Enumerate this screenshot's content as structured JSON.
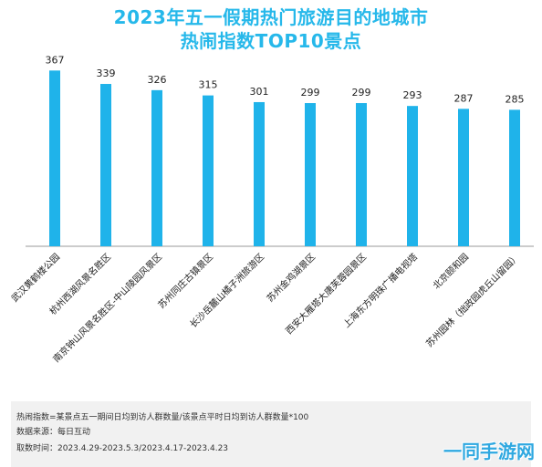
{
  "title_line1": "2023年五一假期热门旅游目的地城市",
  "title_line2": "热闹指数TOP10景点",
  "chart_data": {
    "type": "bar",
    "categories": [
      "武汉黄鹤楼公园",
      "杭州西湖风景名胜区",
      "南京钟山风景名胜区-中山陵园风景区",
      "苏州同庄古镇景区",
      "长沙岳麓山橘子洲旅游区",
      "苏州金鸡湖景区",
      "西安大雁塔大唐芙蓉园景区",
      "上海东方明珠广播电视塔",
      "北京颐和园",
      "苏州园林（拙政园虎丘山留园）"
    ],
    "values": [
      367,
      339,
      326,
      315,
      301,
      299,
      299,
      293,
      287,
      285
    ],
    "data_labels": [
      "367",
      "339",
      "326",
      "315",
      "301",
      "299",
      "299",
      "293",
      "287",
      "285"
    ],
    "ylim": [
      0,
      400
    ],
    "bar_color": "#1fb3ea",
    "axis_color": "#999999",
    "grid": false
  },
  "footer": {
    "line1": "热闹指数=某景点五一期间日均到访人群数量/该景点平时日均到访人群数量*100",
    "line2": "数据来源：每日互动",
    "line3": "取数时间：2023.4.29-2023.5.3/2023.4.17-2023.4.23"
  },
  "watermark": "一同手游网"
}
